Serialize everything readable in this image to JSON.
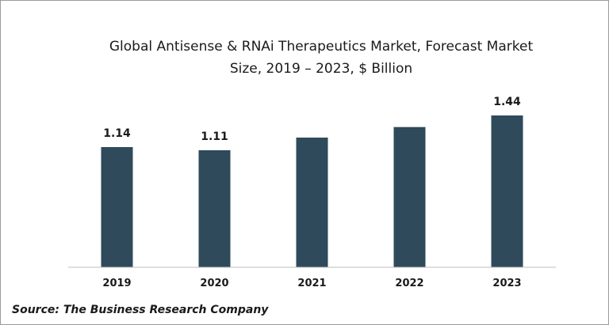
{
  "chart_data": {
    "type": "bar",
    "title_lines": [
      "Global Antisense & RNAi Therapeutics Market, Forecast Market",
      "Size, 2019 – 2023, $ Billion"
    ],
    "categories": [
      "2019",
      "2020",
      "2021",
      "2022",
      "2023"
    ],
    "values": [
      1.14,
      1.11,
      1.23,
      1.33,
      1.44
    ],
    "data_labels": [
      "1.14",
      "1.11",
      "",
      "",
      "1.44"
    ],
    "xlabel": "",
    "ylabel": "",
    "ylim": [
      0,
      1.44
    ],
    "grid": false,
    "legend": "none",
    "bar_color": "#2e4a5b"
  },
  "source": "Source: The Business Research Company"
}
